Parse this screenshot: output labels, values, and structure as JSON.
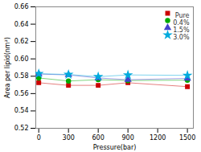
{
  "chart_data": {
    "type": "line",
    "x": [
      0,
      300,
      600,
      900,
      1500
    ],
    "series": [
      {
        "name": "Pure",
        "color": "#cc0000",
        "marker": "square",
        "values": [
          0.5725,
          0.5695,
          0.5695,
          0.5725,
          0.568
        ]
      },
      {
        "name": "0.4%",
        "color": "#00aa00",
        "marker": "circle",
        "values": [
          0.578,
          0.5745,
          0.576,
          0.575,
          0.5755
        ]
      },
      {
        "name": "1.5%",
        "color": "#4444cc",
        "marker": "triangle",
        "values": [
          0.5825,
          0.5815,
          0.578,
          0.576,
          0.5775
        ]
      },
      {
        "name": "3.0%",
        "color": "#00aadd",
        "marker": "star",
        "values": [
          0.583,
          0.582,
          0.5795,
          0.5815,
          0.581
        ]
      }
    ],
    "xlabel": "Pressure(bar)",
    "ylabel": "Area per lipid(nm²)",
    "xlim": [
      -30,
      1560
    ],
    "ylim": [
      0.52,
      0.66
    ],
    "xticks": [
      0,
      300,
      600,
      900,
      1200,
      1500
    ],
    "yticks": [
      0.52,
      0.54,
      0.56,
      0.58,
      {
        "value": 0.6,
        "label": "0.60"
      },
      0.62,
      0.64,
      0.66
    ],
    "legend": "upper right",
    "grid": false
  }
}
